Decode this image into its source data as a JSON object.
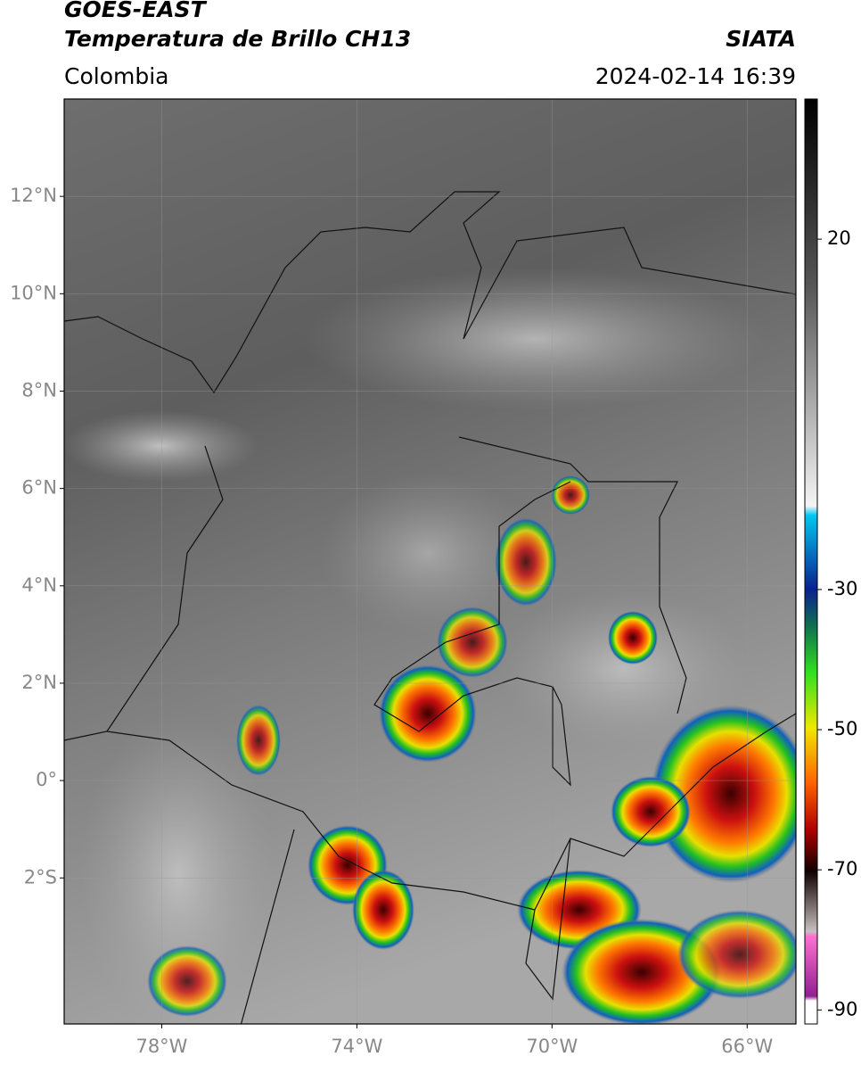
{
  "map": {
    "title": "GOES-EAST",
    "subtitle": "Temperatura de Brillo CH13",
    "source": "SIATA",
    "region": "Colombia",
    "datetime": "2024-02-14 16:39",
    "xlim": [
      -80,
      -65
    ],
    "ylim": [
      -5,
      14
    ],
    "xticks": [
      {
        "value": -78,
        "label": "78°W"
      },
      {
        "value": -74,
        "label": "74°W"
      },
      {
        "value": -70,
        "label": "70°W"
      },
      {
        "value": -66,
        "label": "66°W"
      }
    ],
    "yticks": [
      {
        "value": 12,
        "label": "12°N"
      },
      {
        "value": 10,
        "label": "10°N"
      },
      {
        "value": 8,
        "label": "8°N"
      },
      {
        "value": 6,
        "label": "6°N"
      },
      {
        "value": 4,
        "label": "4°N"
      },
      {
        "value": 2,
        "label": "2°N"
      },
      {
        "value": 0,
        "label": "0°"
      },
      {
        "value": -2,
        "label": "2°S"
      }
    ],
    "grid": true,
    "colorbar": {
      "clim": [
        -92,
        40
      ],
      "ticks": [
        20,
        -30,
        -50,
        -70,
        -90
      ]
    }
  }
}
